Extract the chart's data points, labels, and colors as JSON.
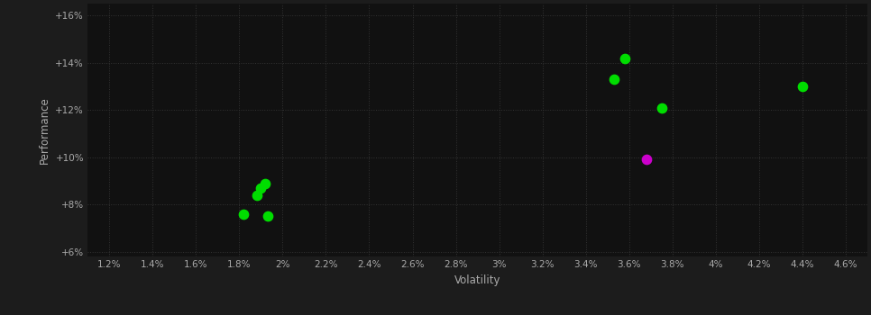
{
  "background_color": "#1c1c1c",
  "plot_bg_color": "#111111",
  "grid_color": "#333333",
  "text_color": "#aaaaaa",
  "xlabel": "Volatility",
  "ylabel": "Performance",
  "xlim": [
    0.011,
    0.047
  ],
  "ylim": [
    0.058,
    0.165
  ],
  "xticks": [
    0.012,
    0.014,
    0.016,
    0.018,
    0.02,
    0.022,
    0.024,
    0.026,
    0.028,
    0.03,
    0.032,
    0.034,
    0.036,
    0.038,
    0.04,
    0.042,
    0.044,
    0.046
  ],
  "yticks": [
    0.06,
    0.08,
    0.1,
    0.12,
    0.14,
    0.16
  ],
  "green_points": [
    [
      0.0188,
      0.084
    ],
    [
      0.019,
      0.087
    ],
    [
      0.0192,
      0.089
    ],
    [
      0.0182,
      0.076
    ],
    [
      0.0193,
      0.075
    ],
    [
      0.0358,
      0.142
    ],
    [
      0.0353,
      0.133
    ],
    [
      0.0375,
      0.121
    ],
    [
      0.044,
      0.13
    ]
  ],
  "magenta_points": [
    [
      0.0368,
      0.099
    ]
  ],
  "marker_size": 55,
  "green_color": "#00dd00",
  "magenta_color": "#cc00cc",
  "figsize": [
    9.66,
    3.5
  ],
  "dpi": 100
}
